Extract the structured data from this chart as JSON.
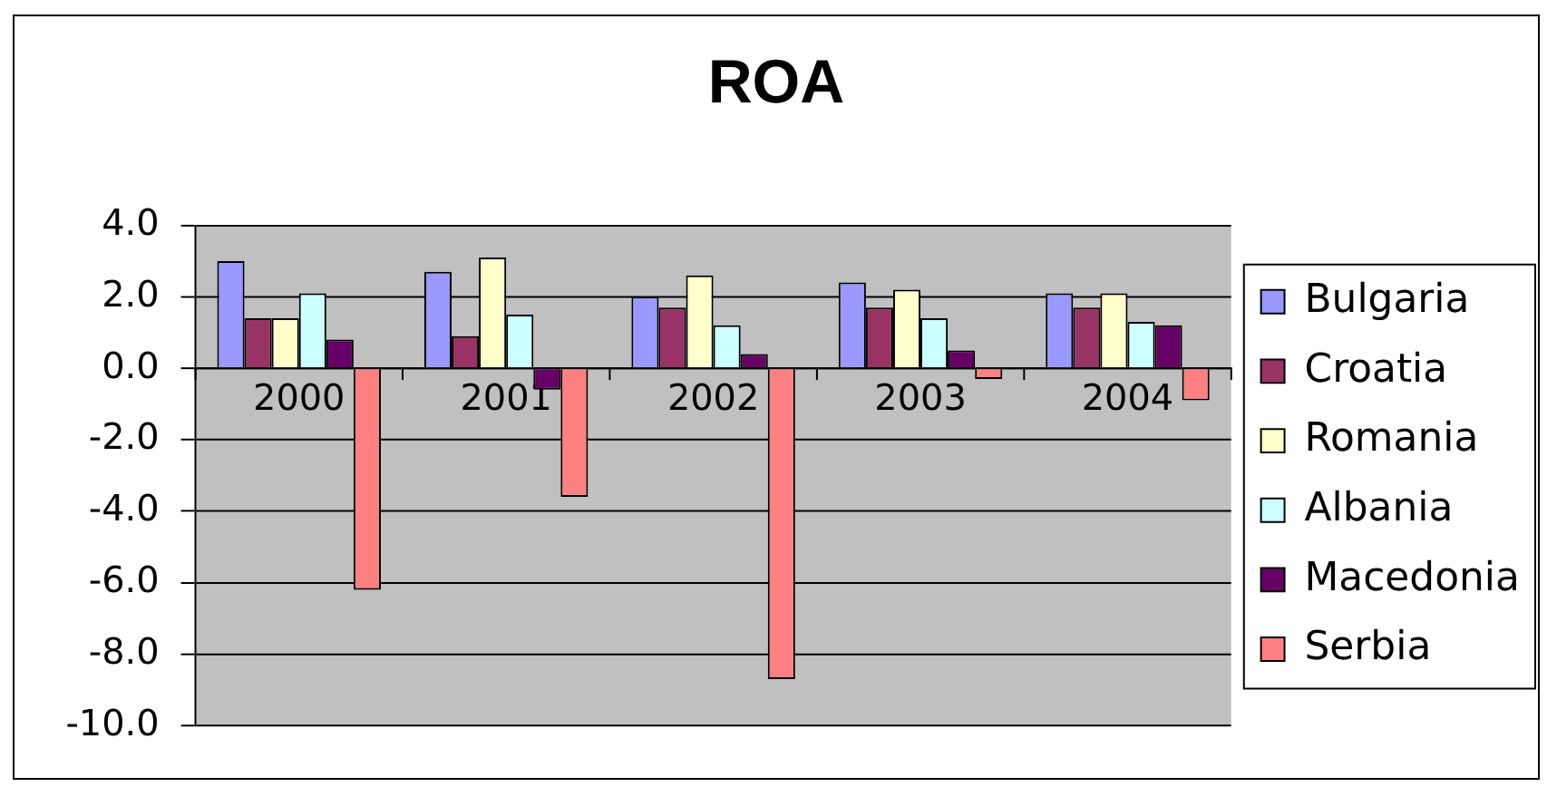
{
  "chart_data": {
    "type": "bar",
    "title": "ROA",
    "categories": [
      "2000",
      "2001",
      "2002",
      "2003",
      "2004"
    ],
    "series": [
      {
        "name": "Bulgaria",
        "color": "#9999ff",
        "values": [
          3.0,
          2.7,
          2.0,
          2.4,
          2.1
        ]
      },
      {
        "name": "Croatia",
        "color": "#993366",
        "values": [
          1.4,
          0.9,
          1.7,
          1.7,
          1.7
        ]
      },
      {
        "name": "Romania",
        "color": "#ffffcc",
        "values": [
          1.4,
          3.1,
          2.6,
          2.2,
          2.1
        ]
      },
      {
        "name": "Albania",
        "color": "#ccffff",
        "values": [
          2.1,
          1.5,
          1.2,
          1.4,
          1.3
        ]
      },
      {
        "name": "Macedonia",
        "color": "#660066",
        "values": [
          0.8,
          -0.6,
          0.4,
          0.5,
          1.2
        ]
      },
      {
        "name": "Serbia",
        "color": "#ff8080",
        "values": [
          -6.2,
          -3.6,
          -8.7,
          -0.3,
          -0.9
        ]
      }
    ],
    "ylim": [
      -10,
      4
    ],
    "yticks": [
      {
        "value": 4,
        "label": "4.0"
      },
      {
        "value": 2,
        "label": "2.0"
      },
      {
        "value": 0,
        "label": "0.0"
      },
      {
        "value": -2,
        "label": "-2.0"
      },
      {
        "value": -4,
        "label": "-4.0"
      },
      {
        "value": -6,
        "label": "-6.0"
      },
      {
        "value": -8,
        "label": "-8.0"
      },
      {
        "value": -10,
        "label": "-10.0"
      }
    ],
    "grid": "y",
    "legend": "right"
  }
}
